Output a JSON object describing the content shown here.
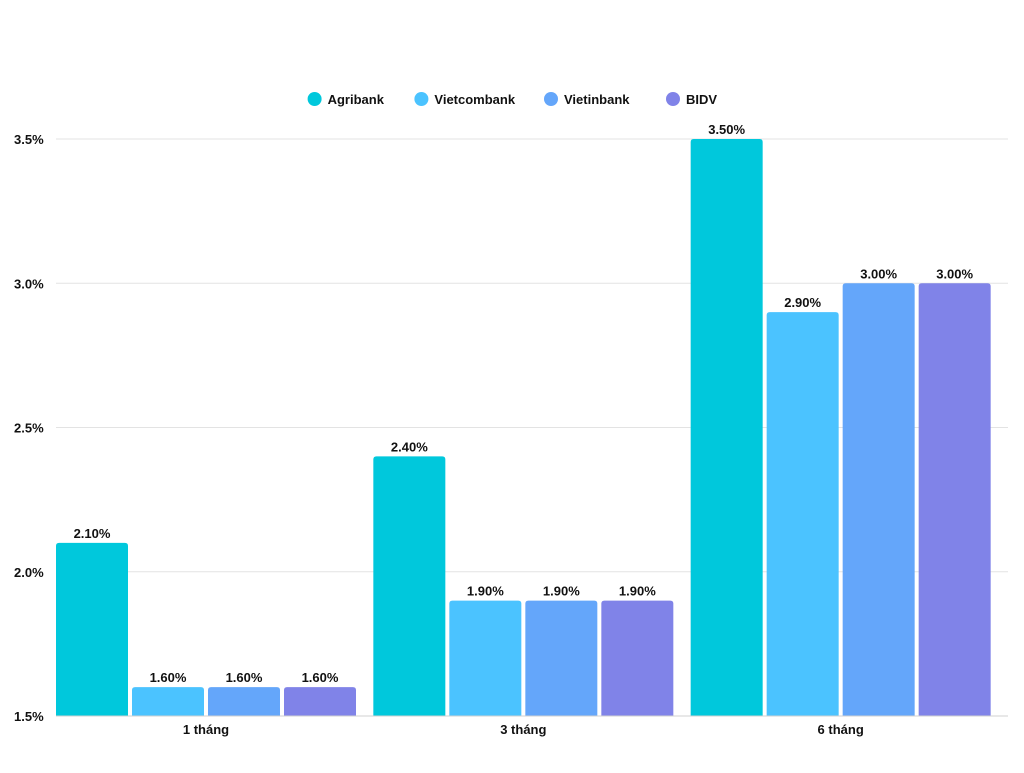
{
  "chart_data": {
    "type": "bar",
    "categories": [
      "1 tháng",
      "3 tháng",
      "6 tháng"
    ],
    "series": [
      {
        "name": "Agribank",
        "color": "#00C8DC",
        "values": [
          2.1,
          2.4,
          3.5
        ],
        "labels": [
          "2.10%",
          "2.40%",
          "3.50%"
        ]
      },
      {
        "name": "Vietcombank",
        "color": "#4BC3FF",
        "values": [
          1.6,
          1.9,
          2.9
        ],
        "labels": [
          "1.60%",
          "1.90%",
          "2.90%"
        ]
      },
      {
        "name": "Vietinbank",
        "color": "#64A6FA",
        "values": [
          1.6,
          1.9,
          3.0
        ],
        "labels": [
          "1.60%",
          "1.90%",
          "3.00%"
        ]
      },
      {
        "name": "BIDV",
        "color": "#8083E8",
        "values": [
          1.6,
          1.9,
          3.0
        ],
        "labels": [
          "1.60%",
          "1.90%",
          "3.00%"
        ]
      }
    ],
    "title": "",
    "xlabel": "",
    "ylabel": "",
    "ylim": [
      1.5,
      3.5
    ],
    "yticks": [
      1.5,
      2.0,
      2.5,
      3.0,
      3.5
    ],
    "ytick_labels": [
      "1.5%",
      "2.0%",
      "2.5%",
      "3.0%",
      "3.5%"
    ],
    "grid": true,
    "legend_position": "top-center"
  }
}
